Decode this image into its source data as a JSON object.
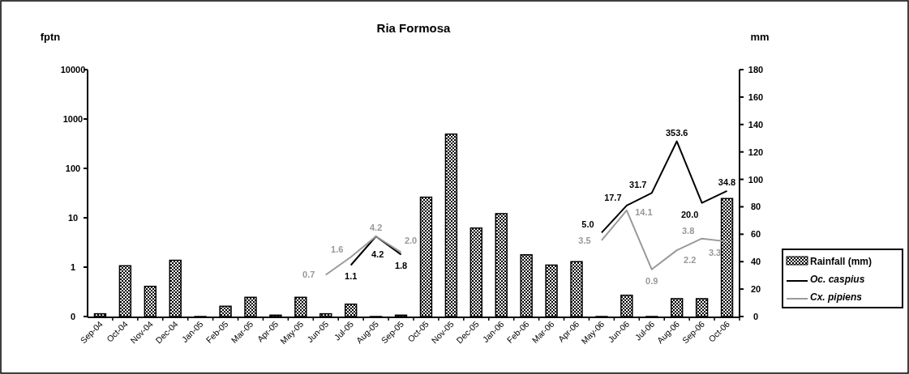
{
  "chart_data": {
    "type": "bar",
    "title": "Ria Formosa",
    "ylabel": "fptn",
    "y2label": "mm",
    "categories": [
      "Sep-04",
      "Oct-04",
      "Nov-04",
      "Dec-04",
      "Jan-05",
      "Feb-05",
      "Mar-05",
      "Apr-05",
      "May-05",
      "Jun-05",
      "Jul-05",
      "Aug-05",
      "Sep-05",
      "Oct-05",
      "Nov-05",
      "Dec-05",
      "Jan-06",
      "Feb-06",
      "Mar-06",
      "Apr-06",
      "May-06",
      "Jun-06",
      "Jul-06",
      "Aug-06",
      "Sep-06",
      "Oct-06"
    ],
    "series": [
      {
        "name": "Rainfall (mm)",
        "axis": "y2",
        "color": "#000000",
        "values": [
          2,
          37,
          22,
          41,
          0,
          7.5,
          14,
          1,
          14,
          2,
          9,
          0,
          1,
          87,
          133,
          64.5,
          75,
          45,
          37.5,
          40,
          0,
          15.5,
          0,
          13,
          13,
          86
        ]
      },
      {
        "name": "Oc. caspius",
        "type": "line",
        "axis": "y",
        "color": "#000000",
        "values": [
          null,
          null,
          null,
          null,
          null,
          null,
          null,
          null,
          null,
          null,
          1.1,
          4.2,
          1.8,
          null,
          null,
          null,
          null,
          null,
          null,
          null,
          5,
          17.7,
          31.7,
          353.6,
          20,
          34.8
        ],
        "value_labels": [
          null,
          null,
          null,
          null,
          null,
          null,
          null,
          null,
          null,
          null,
          "1.1",
          "4.2",
          "1.8",
          null,
          null,
          null,
          null,
          null,
          null,
          null,
          "5.0",
          "17.7",
          "31.7",
          "353.6",
          "20.0",
          "34.8"
        ]
      },
      {
        "name": "Cx. pipiens",
        "type": "line",
        "axis": "y",
        "color": "#999999",
        "values": [
          null,
          null,
          null,
          null,
          null,
          null,
          null,
          null,
          null,
          0.7,
          1.6,
          4.2,
          2,
          null,
          null,
          null,
          null,
          null,
          null,
          null,
          3.5,
          14.1,
          0.9,
          2.2,
          3.8,
          3.3
        ],
        "value_labels": [
          null,
          null,
          null,
          null,
          null,
          null,
          null,
          null,
          null,
          "0.7",
          "1.6",
          "4.2",
          "2.0",
          null,
          null,
          null,
          null,
          null,
          null,
          null,
          "3.5",
          "14.1",
          "0.9",
          "2.2",
          "3.8",
          "3.3"
        ]
      }
    ],
    "log": "y",
    "ylim": [
      0.1,
      10000
    ],
    "yticks": [
      {
        "value": 0.1,
        "label": "0"
      },
      1,
      10,
      100,
      1000,
      10000
    ],
    "y2lim": [
      0,
      180
    ],
    "y2ticks": [
      0,
      20,
      40,
      60,
      80,
      100,
      120,
      140,
      160,
      180
    ],
    "grid": false,
    "legend": "right",
    "marker": "none",
    "line_style": "solid"
  }
}
